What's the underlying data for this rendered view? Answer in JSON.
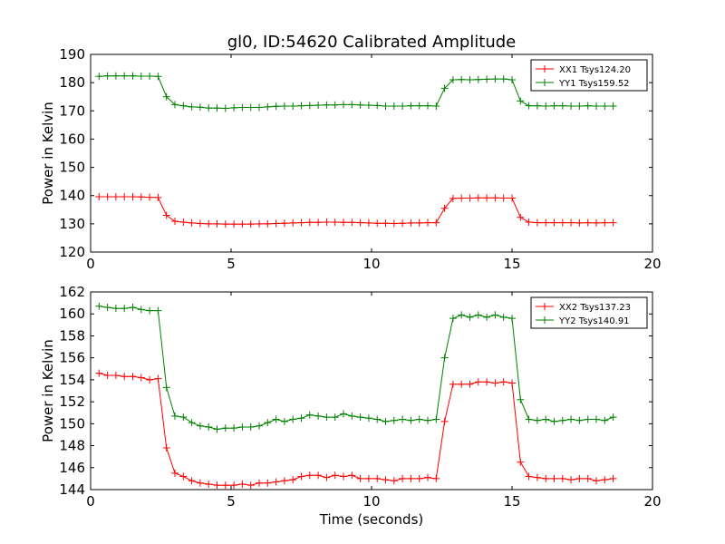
{
  "figure": {
    "title": "gl0, ID:54620 Calibrated Amplitude",
    "xlabel": "Time (seconds)"
  },
  "chart_data": [
    {
      "type": "line",
      "title": "gl0, ID:54620 Calibrated Amplitude",
      "xlabel": "",
      "ylabel": "Power in Kelvin",
      "xlim": [
        0,
        20
      ],
      "ylim": [
        120,
        190
      ],
      "xticks": [
        "0",
        "5",
        "10",
        "15",
        "20"
      ],
      "yticks": [
        "120",
        "130",
        "140",
        "150",
        "160",
        "170",
        "180",
        "190"
      ],
      "grid": false,
      "legend_position": "top-right",
      "marker": "+",
      "series": [
        {
          "name": "XX1 Tsys124.20",
          "color": "#ff0000",
          "x": [
            0.3,
            0.6,
            0.9,
            1.2,
            1.5,
            1.8,
            2.1,
            2.4,
            2.7,
            3.0,
            3.3,
            3.6,
            3.9,
            4.2,
            4.5,
            4.8,
            5.1,
            5.4,
            5.7,
            6.0,
            6.3,
            6.6,
            6.9,
            7.2,
            7.5,
            7.8,
            8.1,
            8.4,
            8.7,
            9.0,
            9.3,
            9.6,
            9.9,
            10.2,
            10.5,
            10.8,
            11.1,
            11.4,
            11.7,
            12.0,
            12.3,
            12.6,
            12.9,
            13.2,
            13.5,
            13.8,
            14.1,
            14.4,
            14.7,
            15.0,
            15.3,
            15.6,
            15.9,
            16.2,
            16.5,
            16.8,
            17.1,
            17.4,
            17.7,
            18.0,
            18.3,
            18.6
          ],
          "y": [
            139.6,
            139.6,
            139.6,
            139.6,
            139.6,
            139.5,
            139.4,
            139.3,
            133.0,
            130.9,
            130.6,
            130.3,
            130.1,
            130.0,
            130.0,
            129.9,
            129.9,
            129.9,
            129.9,
            130.0,
            130.0,
            130.1,
            130.2,
            130.3,
            130.4,
            130.5,
            130.5,
            130.6,
            130.6,
            130.5,
            130.5,
            130.4,
            130.3,
            130.2,
            130.2,
            130.1,
            130.2,
            130.3,
            130.3,
            130.4,
            130.4,
            135.5,
            139.0,
            139.1,
            139.1,
            139.2,
            139.2,
            139.2,
            139.1,
            139.1,
            132.3,
            130.6,
            130.4,
            130.4,
            130.4,
            130.4,
            130.4,
            130.3,
            130.4,
            130.3,
            130.4,
            130.4
          ]
        },
        {
          "name": "YY1 Tsys159.52",
          "color": "#008000",
          "x": [
            0.3,
            0.6,
            0.9,
            1.2,
            1.5,
            1.8,
            2.1,
            2.4,
            2.7,
            3.0,
            3.3,
            3.6,
            3.9,
            4.2,
            4.5,
            4.8,
            5.1,
            5.4,
            5.7,
            6.0,
            6.3,
            6.6,
            6.9,
            7.2,
            7.5,
            7.8,
            8.1,
            8.4,
            8.7,
            9.0,
            9.3,
            9.6,
            9.9,
            10.2,
            10.5,
            10.8,
            11.1,
            11.4,
            11.7,
            12.0,
            12.3,
            12.6,
            12.9,
            13.2,
            13.5,
            13.8,
            14.1,
            14.4,
            14.7,
            15.0,
            15.3,
            15.6,
            15.9,
            16.2,
            16.5,
            16.8,
            17.1,
            17.4,
            17.7,
            18.0,
            18.3,
            18.6
          ],
          "y": [
            182.2,
            182.4,
            182.4,
            182.4,
            182.4,
            182.3,
            182.3,
            182.2,
            175.0,
            172.2,
            171.8,
            171.4,
            171.3,
            171.0,
            171.0,
            170.9,
            171.1,
            171.2,
            171.2,
            171.2,
            171.4,
            171.6,
            171.7,
            171.7,
            171.8,
            171.9,
            172.0,
            172.1,
            172.1,
            172.2,
            172.2,
            172.1,
            172.0,
            171.9,
            171.7,
            171.7,
            171.7,
            171.8,
            171.8,
            171.8,
            171.7,
            178.0,
            181.0,
            181.1,
            181.0,
            181.1,
            181.2,
            181.3,
            181.3,
            181.0,
            173.5,
            171.8,
            171.8,
            171.7,
            171.8,
            171.8,
            171.7,
            171.7,
            171.8,
            171.7,
            171.7,
            171.7
          ]
        }
      ]
    },
    {
      "type": "line",
      "title": "",
      "xlabel": "Time (seconds)",
      "ylabel": "Power in Kelvin",
      "xlim": [
        0,
        20
      ],
      "ylim": [
        144,
        162
      ],
      "xticks": [
        "0",
        "5",
        "10",
        "15",
        "20"
      ],
      "yticks": [
        "144",
        "146",
        "148",
        "150",
        "152",
        "154",
        "156",
        "158",
        "160",
        "162"
      ],
      "grid": false,
      "legend_position": "top-right",
      "marker": "+",
      "series": [
        {
          "name": "XX2 Tsys137.23",
          "color": "#ff0000",
          "x": [
            0.3,
            0.6,
            0.9,
            1.2,
            1.5,
            1.8,
            2.1,
            2.4,
            2.7,
            3.0,
            3.3,
            3.6,
            3.9,
            4.2,
            4.5,
            4.8,
            5.1,
            5.4,
            5.7,
            6.0,
            6.3,
            6.6,
            6.9,
            7.2,
            7.5,
            7.8,
            8.1,
            8.4,
            8.7,
            9.0,
            9.3,
            9.6,
            9.9,
            10.2,
            10.5,
            10.8,
            11.1,
            11.4,
            11.7,
            12.0,
            12.3,
            12.6,
            12.9,
            13.2,
            13.5,
            13.8,
            14.1,
            14.4,
            14.7,
            15.0,
            15.3,
            15.6,
            15.9,
            16.2,
            16.5,
            16.8,
            17.1,
            17.4,
            17.7,
            18.0,
            18.3,
            18.6
          ],
          "y": [
            154.6,
            154.4,
            154.4,
            154.3,
            154.3,
            154.2,
            154.0,
            154.1,
            147.8,
            145.5,
            145.2,
            144.8,
            144.6,
            144.5,
            144.4,
            144.4,
            144.4,
            144.5,
            144.4,
            144.6,
            144.6,
            144.7,
            144.8,
            144.9,
            145.2,
            145.3,
            145.3,
            145.1,
            145.3,
            145.2,
            145.3,
            145.0,
            145.0,
            145.0,
            144.9,
            144.8,
            145.0,
            145.0,
            145.0,
            145.1,
            145.0,
            150.2,
            153.6,
            153.6,
            153.6,
            153.8,
            153.8,
            153.7,
            153.8,
            153.7,
            146.5,
            145.2,
            145.1,
            145.0,
            145.0,
            145.0,
            144.9,
            145.0,
            145.0,
            144.8,
            144.9,
            145.0
          ]
        },
        {
          "name": "YY2 Tsys140.91",
          "color": "#008000",
          "x": [
            0.3,
            0.6,
            0.9,
            1.2,
            1.5,
            1.8,
            2.1,
            2.4,
            2.7,
            3.0,
            3.3,
            3.6,
            3.9,
            4.2,
            4.5,
            4.8,
            5.1,
            5.4,
            5.7,
            6.0,
            6.3,
            6.6,
            6.9,
            7.2,
            7.5,
            7.8,
            8.1,
            8.4,
            8.7,
            9.0,
            9.3,
            9.6,
            9.9,
            10.2,
            10.5,
            10.8,
            11.1,
            11.4,
            11.7,
            12.0,
            12.3,
            12.6,
            12.9,
            13.2,
            13.5,
            13.8,
            14.1,
            14.4,
            14.7,
            15.0,
            15.3,
            15.6,
            15.9,
            16.2,
            16.5,
            16.8,
            17.1,
            17.4,
            17.7,
            18.0,
            18.3,
            18.6
          ],
          "y": [
            160.7,
            160.6,
            160.5,
            160.5,
            160.6,
            160.4,
            160.3,
            160.3,
            153.3,
            150.7,
            150.6,
            150.1,
            149.8,
            149.7,
            149.5,
            149.6,
            149.6,
            149.7,
            149.7,
            149.8,
            150.1,
            150.4,
            150.2,
            150.4,
            150.5,
            150.8,
            150.7,
            150.6,
            150.6,
            150.9,
            150.7,
            150.6,
            150.5,
            150.4,
            150.2,
            150.3,
            150.4,
            150.3,
            150.4,
            150.3,
            150.4,
            156.0,
            159.6,
            159.9,
            159.7,
            159.9,
            159.7,
            159.9,
            159.7,
            159.6,
            152.2,
            150.4,
            150.3,
            150.4,
            150.2,
            150.3,
            150.4,
            150.3,
            150.4,
            150.4,
            150.3,
            150.6
          ]
        }
      ]
    }
  ]
}
